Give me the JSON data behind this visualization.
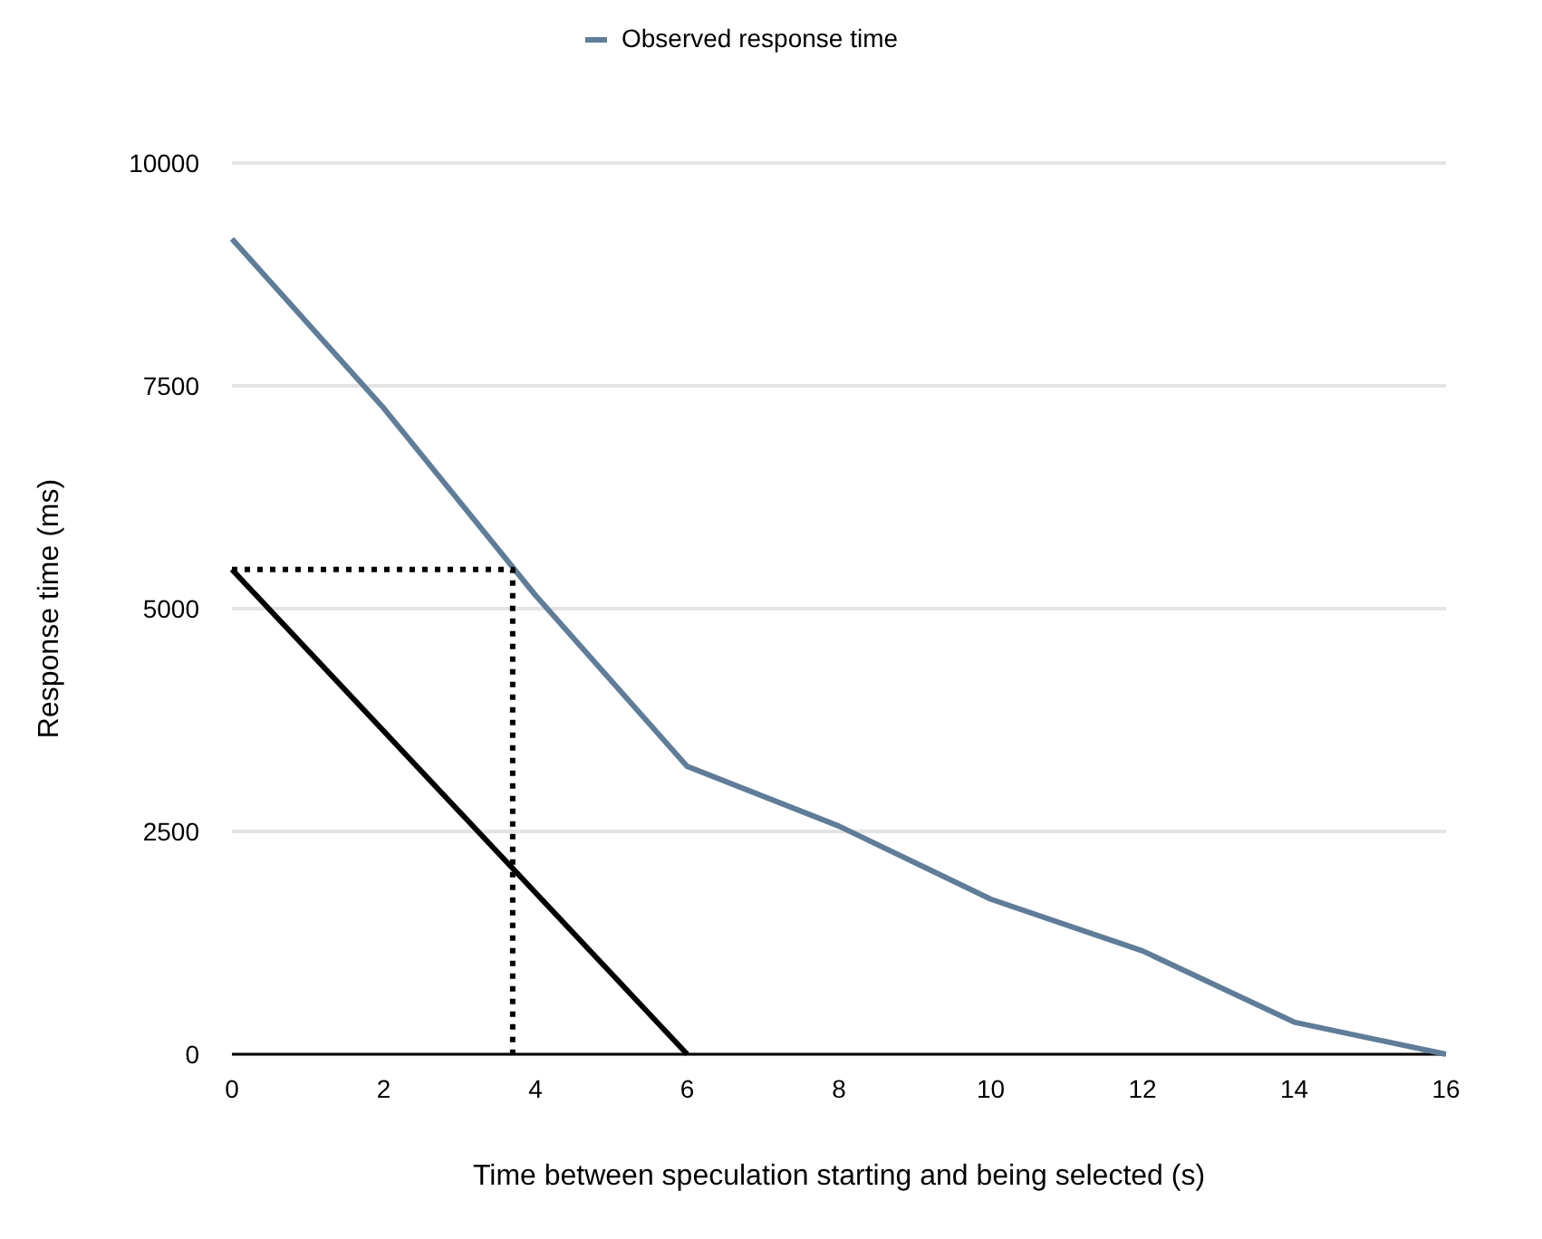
{
  "chart_data": {
    "type": "line",
    "xlabel": "Time between speculation starting and being selected (s)",
    "ylabel": "Response time (ms)",
    "xlim": [
      0,
      16
    ],
    "xticks": [
      0,
      2,
      4,
      6,
      8,
      10,
      12,
      14,
      16
    ],
    "ylim": [
      0,
      10000
    ],
    "yticks": [
      0,
      2500,
      5000,
      7500,
      10000
    ],
    "grid": "y",
    "legend": "top",
    "series": [
      {
        "name": "Observed response time",
        "color": "#5f7d99",
        "x": [
          0,
          2,
          4,
          6,
          8,
          10,
          12,
          14,
          16
        ],
        "values": [
          9150,
          7250,
          5150,
          3230,
          2560,
          1740,
          1160,
          360,
          0
        ]
      },
      {
        "color": "#000000",
        "x": [
          0,
          6
        ],
        "values": [
          5440,
          0
        ]
      },
      {
        "color": "#000000",
        "line_style": "dotted",
        "x": [
          0,
          3.7,
          3.7
        ],
        "values": [
          5440,
          5440,
          0
        ]
      }
    ]
  }
}
